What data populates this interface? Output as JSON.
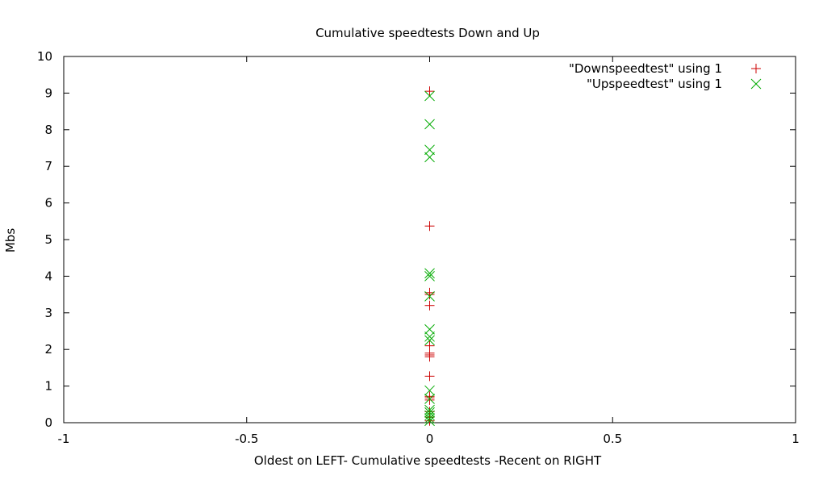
{
  "chart_data": {
    "type": "scatter",
    "title": "Cumulative speedtests Down and Up",
    "xlabel": "Oldest on LEFT- Cumulative speedtests -Recent on RIGHT",
    "ylabel": "Mbs",
    "xlim": [
      -1,
      1
    ],
    "ylim": [
      0,
      10
    ],
    "xticks": [
      -1,
      -0.5,
      0,
      0.5,
      1
    ],
    "xtick_labels": [
      "-1",
      "-0.5",
      "0",
      "0.5",
      "1"
    ],
    "yticks": [
      0,
      1,
      2,
      3,
      4,
      5,
      6,
      7,
      8,
      9,
      10
    ],
    "ytick_labels": [
      "0",
      "1",
      "2",
      "3",
      "4",
      "5",
      "6",
      "7",
      "8",
      "9",
      "10"
    ],
    "grid": false,
    "legend_position": "top-right",
    "series": [
      {
        "name": "\"Downspeedtest\" using 1",
        "marker": "plus",
        "color": "#cc0000",
        "x": [
          0,
          0,
          0,
          0,
          0,
          0,
          0,
          0,
          0,
          0,
          0,
          0,
          0,
          0,
          0,
          0
        ],
        "y": [
          9.05,
          5.37,
          3.55,
          3.5,
          3.2,
          2.1,
          1.9,
          1.85,
          1.8,
          1.27,
          0.72,
          0.68,
          0.62,
          0.3,
          0.15,
          0.05
        ]
      },
      {
        "name": "\"Upspeedtest\" using 1",
        "marker": "cross",
        "color": "#00aa00",
        "x": [
          0,
          0,
          0,
          0,
          0,
          0,
          0,
          0,
          0,
          0,
          0,
          0,
          0,
          0,
          0,
          0,
          0
        ],
        "y": [
          8.92,
          8.15,
          7.45,
          7.25,
          4.08,
          4.0,
          3.45,
          2.55,
          2.35,
          2.25,
          0.88,
          0.65,
          0.35,
          0.28,
          0.2,
          0.12,
          0.05
        ]
      }
    ]
  }
}
